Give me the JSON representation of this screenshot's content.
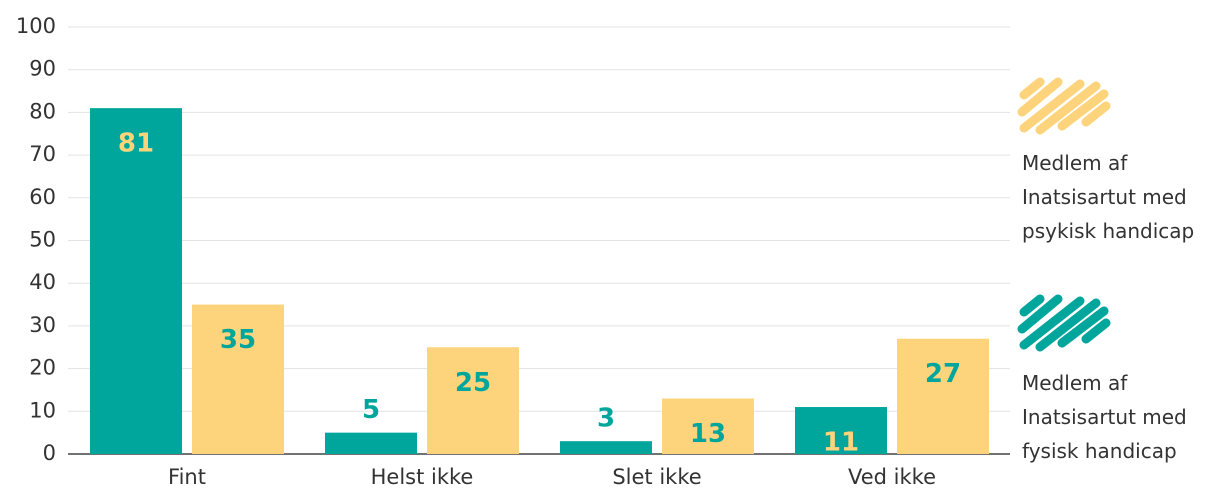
{
  "chart_data": {
    "type": "bar",
    "categories": [
      "Fint",
      "Helst ikke",
      "Slet ikke",
      "Ved ikke"
    ],
    "series": [
      {
        "name": "Medlem af Inatsisartut med fysisk handicap",
        "color": "#00a69c",
        "values": [
          81,
          5,
          3,
          11
        ]
      },
      {
        "name": "Medlem af Inatsisartut med psykisk handicap",
        "color": "#fdd47c",
        "values": [
          35,
          25,
          13,
          27
        ]
      }
    ],
    "ylim": [
      0,
      100
    ],
    "yticks": [
      0,
      10,
      20,
      30,
      40,
      50,
      60,
      70,
      80,
      90,
      100
    ],
    "grid": true,
    "legend": "right"
  }
}
